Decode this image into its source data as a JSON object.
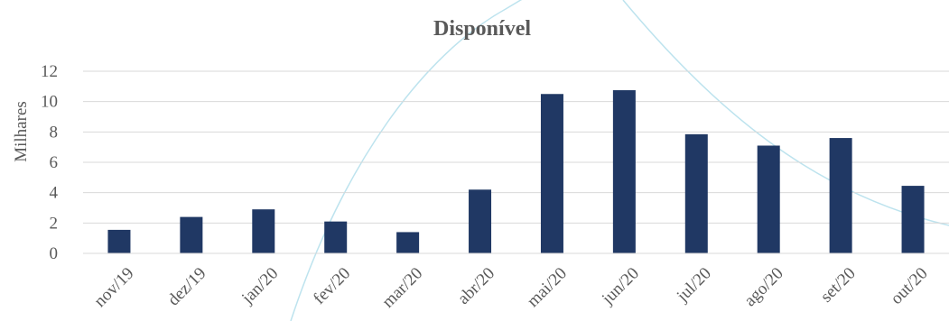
{
  "chart_data": {
    "type": "bar",
    "title": "Disponível",
    "ylabel": "Milhares",
    "xlabel": "",
    "categories": [
      "nov/19",
      "dez/19",
      "jan/20",
      "fev/20",
      "mar/20",
      "abr/20",
      "mai/20",
      "jun/20",
      "jul/20",
      "ago/20",
      "set/20",
      "out/20"
    ],
    "values": [
      1.55,
      2.4,
      2.9,
      2.1,
      1.4,
      4.2,
      10.5,
      10.75,
      7.85,
      7.1,
      7.6,
      4.45
    ],
    "yticks": [
      "0",
      "2",
      "4",
      "6",
      "8",
      "10",
      "12"
    ],
    "ylim": [
      0,
      12
    ],
    "grid": true,
    "bar_color": "#203864"
  }
}
